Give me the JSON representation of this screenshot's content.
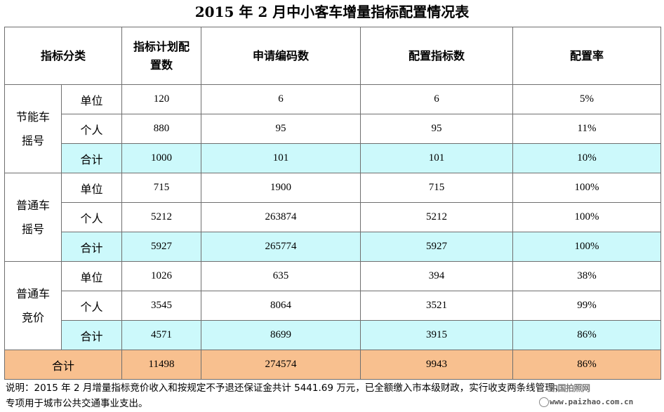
{
  "title": "2015 年 2 月中小客车增量指标配置情况表",
  "header": {
    "category": "指标分类",
    "plan_line1": "指标计划配",
    "plan_line2": "置数",
    "applications": "申请编码数",
    "allocated": "配置指标数",
    "rate": "配置率"
  },
  "groups": [
    {
      "name_line1": "节能车",
      "name_line2": "摇号",
      "rows": [
        {
          "type": "单位",
          "plan": "120",
          "applications": "6",
          "allocated": "6",
          "rate": "5%"
        },
        {
          "type": "个人",
          "plan": "880",
          "applications": "95",
          "allocated": "95",
          "rate": "11%"
        },
        {
          "type": "合计",
          "plan": "1000",
          "applications": "101",
          "allocated": "101",
          "rate": "10%"
        }
      ]
    },
    {
      "name_line1": "普通车",
      "name_line2": "摇号",
      "rows": [
        {
          "type": "单位",
          "plan": "715",
          "applications": "1900",
          "allocated": "715",
          "rate": "100%"
        },
        {
          "type": "个人",
          "plan": "5212",
          "applications": "263874",
          "allocated": "5212",
          "rate": "100%"
        },
        {
          "type": "合计",
          "plan": "5927",
          "applications": "265774",
          "allocated": "5927",
          "rate": "100%"
        }
      ]
    },
    {
      "name_line1": "普通车",
      "name_line2": "竞价",
      "rows": [
        {
          "type": "单位",
          "plan": "1026",
          "applications": "635",
          "allocated": "394",
          "rate": "38%"
        },
        {
          "type": "个人",
          "plan": "3545",
          "applications": "8064",
          "allocated": "3521",
          "rate": "99%"
        },
        {
          "type": "合计",
          "plan": "4571",
          "applications": "8699",
          "allocated": "3915",
          "rate": "86%"
        }
      ]
    }
  ],
  "total": {
    "label": "合计",
    "plan": "11498",
    "applications": "274574",
    "allocated": "9943",
    "rate": "86%"
  },
  "note": {
    "line1": "说明：2015 年 2 月增量指标竞价收入和按规定不予退还保证金共计 5441.69 万元，已全额缴入市本级财政，实行收支两条线管理，",
    "line2": "专项用于城市公共交通事业支出。"
  },
  "watermark": {
    "logo": "中国拍照网",
    "url": "www.paizhao.com.cn"
  },
  "colors": {
    "subtotal_bg": "#ccf9fb",
    "total_bg": "#f8c08f",
    "border": "#6f6f6f"
  }
}
